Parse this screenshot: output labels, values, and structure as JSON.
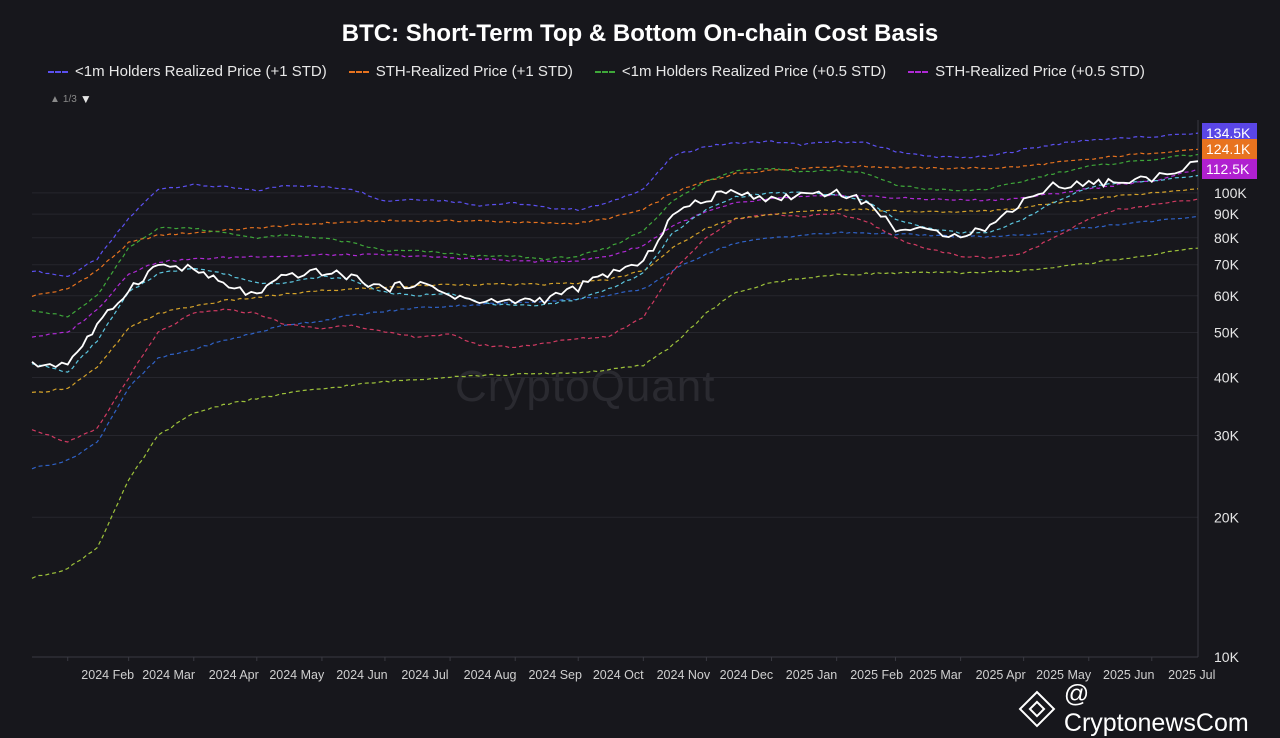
{
  "title": "BTC: Short-Term Top & Bottom On-chain Cost Basis",
  "legend": [
    {
      "label": "<1m Holders Realized Price (+1 STD)",
      "color": "#5b50f0"
    },
    {
      "label": "STH-Realized Price (+1 STD)",
      "color": "#e8731f"
    },
    {
      "label": "<1m Holders Realized Price (+0.5 STD)",
      "color": "#3fa83a"
    },
    {
      "label": "STH-Realized Price (+0.5 STD)",
      "color": "#b02ad6"
    }
  ],
  "legend_pager": "1/3",
  "watermark": "CryptoQuant",
  "brand": "@ CryptonewsCom",
  "price_tags": [
    {
      "value": 134500,
      "label": "134.5K",
      "color": "#5a46e6"
    },
    {
      "value": 124100,
      "label": "124.1K",
      "color": "#e8731f"
    },
    {
      "value": 112500,
      "label": "112.5K",
      "color": "#b020d0"
    }
  ],
  "chart_data": {
    "type": "line",
    "title": "BTC: Short-Term Top & Bottom On-chain Cost Basis",
    "yscale": "log",
    "ylim": [
      10000,
      140000
    ],
    "y_ticks": [
      10000,
      20000,
      30000,
      40000,
      50000,
      60000,
      70000,
      80000,
      90000,
      100000
    ],
    "y_tick_labels": [
      "10K",
      "20K",
      "30K",
      "40K",
      "50K",
      "60K",
      "70K",
      "80K",
      "90K",
      "100K"
    ],
    "x_range": [
      "2024-01-15",
      "2025-07-23"
    ],
    "x_ticks": [
      {
        "date": "2024-02-01",
        "label": "2024 Feb"
      },
      {
        "date": "2024-03-01",
        "label": "2024 Mar"
      },
      {
        "date": "2024-04-01",
        "label": "2024 Apr"
      },
      {
        "date": "2024-05-01",
        "label": "2024 May"
      },
      {
        "date": "2024-06-01",
        "label": "2024 Jun"
      },
      {
        "date": "2024-07-01",
        "label": "2024 Jul"
      },
      {
        "date": "2024-08-01",
        "label": "2024 Aug"
      },
      {
        "date": "2024-09-01",
        "label": "2024 Sep"
      },
      {
        "date": "2024-10-01",
        "label": "2024 Oct"
      },
      {
        "date": "2024-11-01",
        "label": "2024 Nov"
      },
      {
        "date": "2024-12-01",
        "label": "2024 Dec"
      },
      {
        "date": "2025-01-01",
        "label": "2025 Jan"
      },
      {
        "date": "2025-02-01",
        "label": "2025 Feb"
      },
      {
        "date": "2025-03-01",
        "label": "2025 Mar"
      },
      {
        "date": "2025-04-01",
        "label": "2025 Apr"
      },
      {
        "date": "2025-05-01",
        "label": "2025 May"
      },
      {
        "date": "2025-06-01",
        "label": "2025 Jun"
      },
      {
        "date": "2025-07-01",
        "label": "2025 Jul"
      }
    ],
    "x": [
      "2024-01-15",
      "2024-02-01",
      "2024-02-15",
      "2024-03-01",
      "2024-03-15",
      "2024-04-01",
      "2024-04-15",
      "2024-05-01",
      "2024-05-15",
      "2024-06-01",
      "2024-06-15",
      "2024-07-01",
      "2024-07-15",
      "2024-08-01",
      "2024-08-15",
      "2024-09-01",
      "2024-09-15",
      "2024-10-01",
      "2024-10-15",
      "2024-11-01",
      "2024-11-15",
      "2024-12-01",
      "2024-12-15",
      "2025-01-01",
      "2025-01-15",
      "2025-02-01",
      "2025-02-15",
      "2025-03-01",
      "2025-03-15",
      "2025-04-01",
      "2025-04-15",
      "2025-05-01",
      "2025-05-15",
      "2025-06-01",
      "2025-06-15",
      "2025-07-01",
      "2025-07-23"
    ],
    "series": [
      {
        "name": "<1m Holders Realized Price (+1 STD)",
        "color": "#5b50f0",
        "style": "dashed",
        "values": [
          68000,
          66000,
          72000,
          88000,
          102000,
          104000,
          103000,
          101000,
          104000,
          103000,
          102000,
          96000,
          97000,
          96000,
          94000,
          95000,
          93000,
          92000,
          95000,
          102000,
          120000,
          126000,
          128000,
          129000,
          127000,
          129000,
          128000,
          123000,
          120000,
          119000,
          120000,
          124000,
          127000,
          130000,
          131000,
          132000,
          134500
        ]
      },
      {
        "name": "STH-Realized Price (+1 STD)",
        "color": "#e8731f",
        "style": "dashed",
        "values": [
          60000,
          62000,
          68000,
          78000,
          81000,
          82000,
          83000,
          84000,
          85000,
          86000,
          86500,
          87000,
          87000,
          87000,
          87000,
          86500,
          86000,
          86000,
          88000,
          92000,
          100000,
          106000,
          110000,
          112000,
          113000,
          114000,
          114000,
          113500,
          113000,
          113000,
          113000,
          114000,
          116000,
          118000,
          120000,
          122000,
          124100
        ]
      },
      {
        "name": "<1m Holders Realized Price (+0.5 STD)",
        "color": "#3fa83a",
        "style": "dashed",
        "values": [
          56000,
          54000,
          60000,
          76000,
          84000,
          84000,
          82000,
          80000,
          81000,
          80000,
          78000,
          75000,
          75000,
          74000,
          73000,
          73000,
          72000,
          73000,
          76000,
          83000,
          96000,
          106000,
          112000,
          113000,
          111000,
          112000,
          110000,
          104000,
          102000,
          101000,
          102000,
          106000,
          110000,
          114000,
          116000,
          118000,
          121000
        ]
      },
      {
        "name": "STH-Realized Price (+0.5 STD)",
        "color": "#b02ad6",
        "style": "dashed",
        "values": [
          49000,
          50000,
          56000,
          67000,
          71000,
          72000,
          72500,
          73000,
          73000,
          73500,
          73500,
          73500,
          73000,
          72500,
          72000,
          71500,
          71000,
          71500,
          73000,
          77000,
          85000,
          91000,
          95000,
          97000,
          98000,
          98500,
          98500,
          97500,
          97000,
          96500,
          96500,
          97500,
          99500,
          102000,
          104000,
          106000,
          112500
        ]
      },
      {
        "name": "",
        "color": "#2f62c7",
        "style": "dashed",
        "values": [
          25500,
          26500,
          29000,
          38000,
          44000,
          46000,
          48000,
          50000,
          52000,
          53000,
          54500,
          55500,
          56500,
          57000,
          57500,
          58000,
          58500,
          59000,
          60000,
          62000,
          68000,
          74000,
          78000,
          80000,
          81000,
          82000,
          82000,
          81500,
          81000,
          80500,
          80500,
          81000,
          82500,
          84000,
          85500,
          87000,
          89000
        ]
      },
      {
        "name": "",
        "color": "#d13a62",
        "style": "dashed",
        "values": [
          31000,
          29000,
          31000,
          40000,
          50000,
          55000,
          56000,
          55000,
          52000,
          51000,
          52000,
          50000,
          49000,
          49500,
          47000,
          46500,
          47500,
          48500,
          49000,
          54000,
          68000,
          80000,
          88000,
          90000,
          89000,
          90000,
          87000,
          80000,
          76000,
          73000,
          72500,
          74000,
          80000,
          88000,
          92000,
          94000,
          97000
        ]
      },
      {
        "name": "",
        "color": "#d4a22a",
        "style": "dashed",
        "values": [
          37000,
          38000,
          42000,
          51000,
          55000,
          57000,
          58500,
          59500,
          60500,
          61500,
          62000,
          62500,
          63000,
          63500,
          63500,
          63500,
          63500,
          64000,
          65000,
          68000,
          76000,
          84000,
          88000,
          90000,
          91000,
          92000,
          92000,
          91500,
          91000,
          91000,
          91500,
          93000,
          95000,
          97000,
          98500,
          100000,
          102000
        ]
      },
      {
        "name": "",
        "color": "#5cc6df",
        "style": "dashed",
        "values": [
          43000,
          41000,
          48000,
          61000,
          67000,
          69000,
          67000,
          64000,
          64000,
          66000,
          65000,
          61000,
          60000,
          61000,
          58000,
          57000,
          57500,
          59000,
          62000,
          67000,
          82000,
          92000,
          98000,
          100000,
          100000,
          99000,
          96000,
          88000,
          84000,
          82000,
          82000,
          88000,
          95000,
          103000,
          105000,
          106000,
          109000
        ]
      },
      {
        "name": "",
        "color": "#9dc23a",
        "style": "dashed",
        "values": [
          14800,
          15500,
          17200,
          24000,
          30000,
          33500,
          35000,
          36000,
          37000,
          37800,
          38500,
          39200,
          39600,
          40200,
          40400,
          40600,
          40800,
          41000,
          41500,
          42500,
          47000,
          55000,
          61000,
          64000,
          65500,
          66500,
          67000,
          67200,
          67300,
          67300,
          67500,
          68000,
          69000,
          70500,
          72000,
          73500,
          76000
        ]
      },
      {
        "name": "",
        "color": "#ffffff",
        "style": "solid",
        "values": [
          42500,
          43000,
          51500,
          62000,
          70000,
          68500,
          63500,
          60000,
          66500,
          67500,
          66000,
          62000,
          64000,
          60500,
          58000,
          58500,
          59000,
          62500,
          67000,
          70500,
          90000,
          97000,
          101500,
          96500,
          99500,
          100500,
          95500,
          84000,
          82500,
          81500,
          84500,
          96500,
          103500,
          105000,
          105500,
          107500,
          117000
        ]
      }
    ]
  }
}
